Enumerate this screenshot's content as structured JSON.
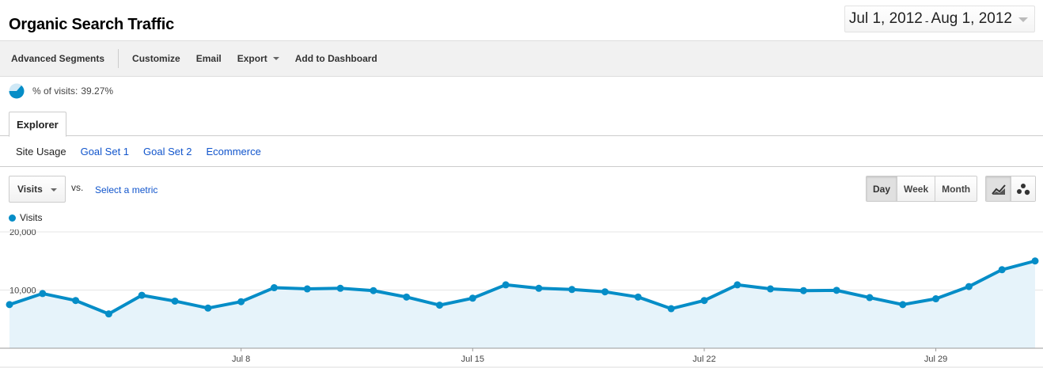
{
  "page_title": "Organic Search Traffic",
  "date_range": {
    "start": "Jul 1, 2012",
    "separator": "-",
    "end": "Aug 1, 2012"
  },
  "toolbar": {
    "advanced_segments": "Advanced Segments",
    "customize": "Customize",
    "email": "Email",
    "export": "Export",
    "add_to_dashboard": "Add to Dashboard"
  },
  "segment": {
    "label": "% of visits:",
    "value": "39.27%"
  },
  "tabs": {
    "explorer": "Explorer"
  },
  "subtabs": [
    "Site Usage",
    "Goal Set 1",
    "Goal Set 2",
    "Ecommerce"
  ],
  "metric": {
    "selected": "Visits",
    "vs": "vs.",
    "select_metric": "Select a metric"
  },
  "period_buttons": [
    "Day",
    "Week",
    "Month"
  ],
  "chart_type_buttons": [
    "line-chart-icon",
    "motion-chart-icon"
  ],
  "colors": {
    "series": "#058dc7",
    "area": "#e6f3fa",
    "link": "#1155cc"
  },
  "chart_data": {
    "type": "area",
    "legend": "Visits",
    "ylim": [
      0,
      20000
    ],
    "y_ticks": [
      "20,000",
      "10,000"
    ],
    "y_tick_values": [
      20000,
      10000
    ],
    "x_tick_labels": [
      "Jul 8",
      "Jul 15",
      "Jul 22",
      "Jul 29"
    ],
    "x_tick_days": [
      8,
      15,
      22,
      29
    ],
    "x": [
      1,
      2,
      3,
      4,
      5,
      6,
      7,
      8,
      9,
      10,
      11,
      12,
      13,
      14,
      15,
      16,
      17,
      18,
      19,
      20,
      21,
      22,
      23,
      24,
      25,
      26,
      27,
      28,
      29,
      30,
      31,
      32
    ],
    "values": [
      7500,
      9400,
      8200,
      5900,
      9100,
      8100,
      6900,
      8000,
      10400,
      10200,
      10300,
      9900,
      8800,
      7400,
      8600,
      10900,
      10300,
      10100,
      9700,
      8800,
      6800,
      8200,
      10900,
      10200,
      9900,
      9950,
      8700,
      7500,
      8500,
      10600,
      13500,
      15000
    ]
  }
}
